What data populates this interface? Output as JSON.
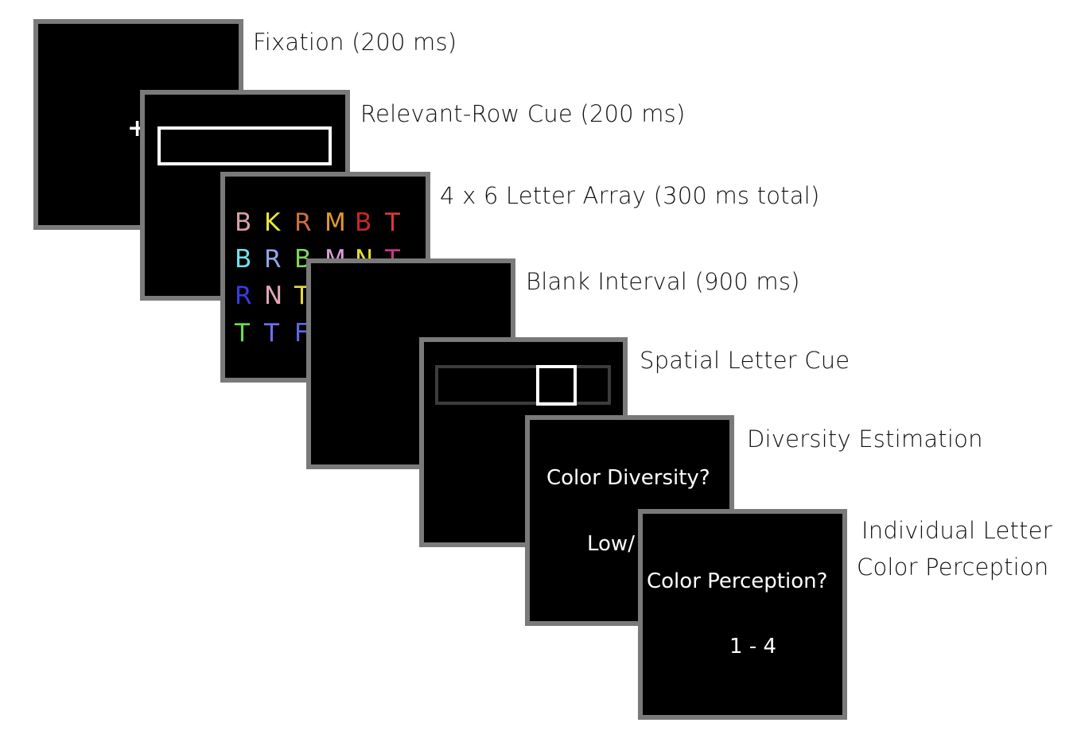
{
  "steps": [
    {
      "label": "Fixation (200 ms)",
      "stimulus": "+"
    },
    {
      "label": "Relevant-Row Cue (200 ms)"
    },
    {
      "label": "4 x 6 Letter Array (300 ms total)"
    },
    {
      "label": "Blank Interval (900 ms)"
    },
    {
      "label": "Spatial Letter Cue"
    },
    {
      "label": "Diversity Estimation",
      "prompt": "Color Diversity?",
      "response": "Low/"
    },
    {
      "label_line1": "Individual Letter",
      "label_line2": "Color Perception",
      "prompt": "Color Perception?",
      "response": "1 - 4"
    }
  ],
  "letter_array": [
    [
      {
        "char": "B",
        "color": "#d8a0a8"
      },
      {
        "char": "K",
        "color": "#e8e83a"
      },
      {
        "char": "R",
        "color": "#d0703a"
      },
      {
        "char": "M",
        "color": "#e09a2e"
      },
      {
        "char": "B",
        "color": "#c8282a"
      },
      {
        "char": "T",
        "color": "#d83c30"
      }
    ],
    [
      {
        "char": "B",
        "color": "#70e0f0"
      },
      {
        "char": "R",
        "color": "#8fa8e8"
      },
      {
        "char": "B",
        "color": "#7ed85a"
      },
      {
        "char": "M",
        "color": "#d8a0d8"
      },
      {
        "char": "N",
        "color": "#e8e030"
      },
      {
        "char": "T",
        "color": "#d0368a"
      }
    ],
    [
      {
        "char": "R",
        "color": "#3a3ae8"
      },
      {
        "char": "N",
        "color": "#e0a8b8"
      },
      {
        "char": "T",
        "color": "#e8d840"
      }
    ],
    [
      {
        "char": "T",
        "color": "#6ae04a"
      },
      {
        "char": "T",
        "color": "#7070f0"
      },
      {
        "char": "F",
        "color": "#5a6ae8"
      }
    ]
  ],
  "colors": {
    "frame_border": "#7a7a7a",
    "frame_fill": "#000000",
    "cue_outline": "#ffffff",
    "dim_row_outline": "#3c3c3c"
  }
}
